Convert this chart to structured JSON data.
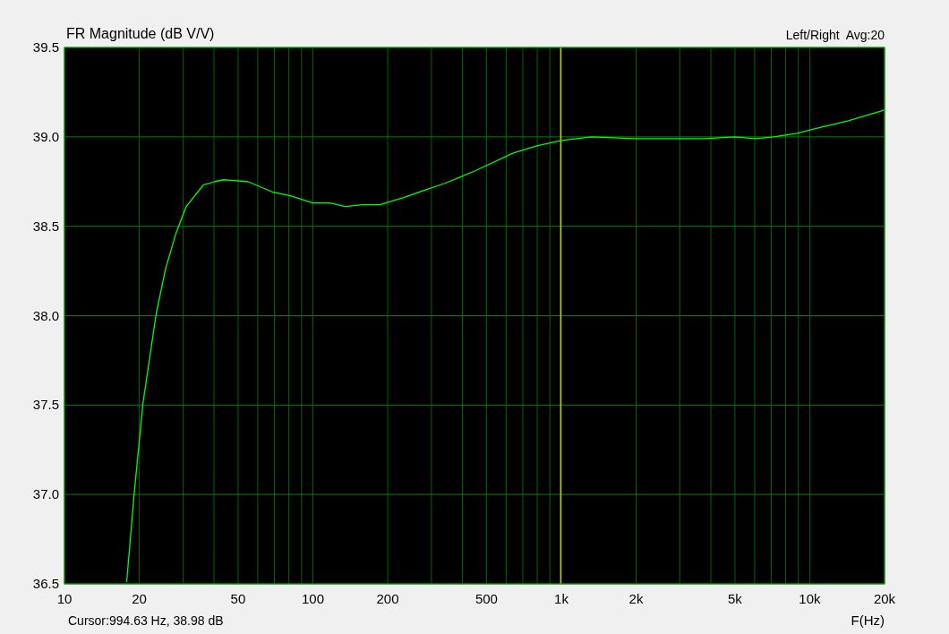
{
  "chart_data": {
    "type": "line",
    "title": "FR Magnitude (dB V/V)",
    "xlabel": "F(Hz)",
    "log": "x",
    "annotations": [
      "Left/Right  Avg:20",
      "Cursor:994.63 Hz, 38.98 dB"
    ],
    "xlim": [
      10,
      20000
    ],
    "xticks": [
      10,
      20,
      {
        "value": 30,
        "label": null
      },
      {
        "value": 40,
        "label": null
      },
      50,
      {
        "value": 60,
        "label": null
      },
      {
        "value": 70,
        "label": null
      },
      {
        "value": 80,
        "label": null
      },
      {
        "value": 90,
        "label": null
      },
      100,
      200,
      {
        "value": 300,
        "label": null
      },
      {
        "value": 400,
        "label": null
      },
      500,
      {
        "value": 600,
        "label": null
      },
      {
        "value": 700,
        "label": null
      },
      {
        "value": 800,
        "label": null
      },
      {
        "value": 900,
        "label": null
      },
      {
        "value": 1000,
        "label": "1k"
      },
      {
        "value": 2000,
        "label": "2k"
      },
      {
        "value": 3000,
        "label": null
      },
      {
        "value": 4000,
        "label": null
      },
      {
        "value": 5000,
        "label": "5k"
      },
      {
        "value": 6000,
        "label": null
      },
      {
        "value": 7000,
        "label": null
      },
      {
        "value": 8000,
        "label": null
      },
      {
        "value": 9000,
        "label": null
      },
      {
        "value": 10000,
        "label": "10k"
      },
      {
        "value": 20000,
        "label": "20k"
      }
    ],
    "ylim": [
      36.5,
      39.5
    ],
    "yticks": [
      {
        "value": 36.5,
        "label": "36.5"
      },
      {
        "value": 37,
        "label": "37.0"
      },
      {
        "value": 37.5,
        "label": "37.5"
      },
      {
        "value": 38,
        "label": "38.0"
      },
      {
        "value": 38.5,
        "label": "38.5"
      },
      {
        "value": 39,
        "label": "39.0"
      },
      {
        "value": 39.5,
        "label": "39.5"
      }
    ],
    "grid": true,
    "marker": "none",
    "line_style": "solid",
    "ref_lines": [
      {
        "axis": "x",
        "value": 994.63,
        "color": "#c8c800"
      }
    ],
    "series": [
      {
        "color": "#00ff00",
        "x": [
          17.8,
          19.1,
          20.7,
          23.4,
          25.5,
          28.1,
          30.9,
          36.2,
          40.4,
          43.8,
          54.7,
          69.3,
          81.2,
          99.9,
          117,
          135,
          158,
          186,
          232,
          280,
          340,
          450,
          641,
          797,
          1000,
          1320,
          2000,
          3030,
          3780,
          5000,
          6050,
          7150,
          8900,
          10800,
          14300,
          20000
        ],
        "values": [
          36.51,
          37.01,
          37.51,
          38.01,
          38.26,
          38.46,
          38.61,
          38.73,
          38.75,
          38.76,
          38.75,
          38.69,
          38.67,
          38.63,
          38.63,
          38.61,
          38.62,
          38.62,
          38.66,
          38.7,
          38.74,
          38.81,
          38.91,
          38.95,
          38.98,
          39.0,
          38.99,
          38.99,
          38.99,
          39.0,
          38.99,
          39.0,
          39.02,
          39.05,
          39.09,
          39.15
        ]
      }
    ]
  }
}
